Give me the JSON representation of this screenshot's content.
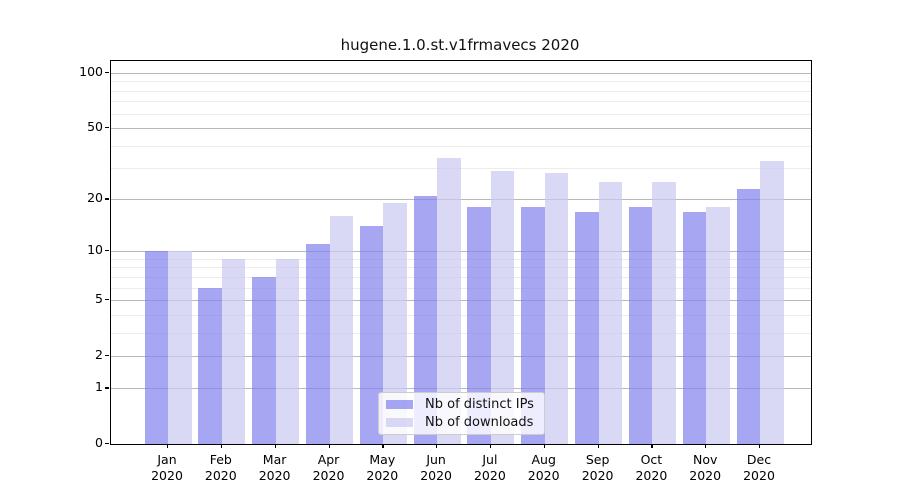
{
  "chart_data": {
    "type": "bar",
    "title": "hugene.1.0.st.v1frmavecs 2020",
    "categories": [
      {
        "month": "Jan",
        "year": "2020"
      },
      {
        "month": "Feb",
        "year": "2020"
      },
      {
        "month": "Mar",
        "year": "2020"
      },
      {
        "month": "Apr",
        "year": "2020"
      },
      {
        "month": "May",
        "year": "2020"
      },
      {
        "month": "Jun",
        "year": "2020"
      },
      {
        "month": "Jul",
        "year": "2020"
      },
      {
        "month": "Aug",
        "year": "2020"
      },
      {
        "month": "Sep",
        "year": "2020"
      },
      {
        "month": "Oct",
        "year": "2020"
      },
      {
        "month": "Nov",
        "year": "2020"
      },
      {
        "month": "Dec",
        "year": "2020"
      }
    ],
    "series": [
      {
        "name": "Nb of distinct IPs",
        "color": "rgba(128,128,236,0.7)",
        "solid_color": "#a6a6f2",
        "values": [
          10,
          6,
          7,
          11,
          14,
          21,
          18,
          18,
          17,
          18,
          17,
          23
        ]
      },
      {
        "name": "Nb of downloads",
        "color": "rgba(201,201,242,0.7)",
        "solid_color": "#d9d9f6",
        "values": [
          10,
          9,
          9,
          16,
          19,
          34,
          29,
          28,
          25,
          25,
          18,
          33
        ]
      }
    ],
    "yscale": "log1p",
    "y_ticks": [
      100,
      50,
      20,
      10,
      5,
      2,
      1,
      0
    ],
    "y_minor_gridlines": [
      3,
      4,
      6,
      7,
      8,
      9,
      30,
      40,
      60,
      70,
      80,
      90
    ],
    "ylim": [
      0,
      116
    ],
    "xlabel": "",
    "ylabel": "",
    "grid": true,
    "legend_position": "inside-bottom-center",
    "colors": {
      "major_grid": "#b9b9b9",
      "minor_grid": "#ececec",
      "spine": "#000000",
      "text": "#111111"
    }
  }
}
